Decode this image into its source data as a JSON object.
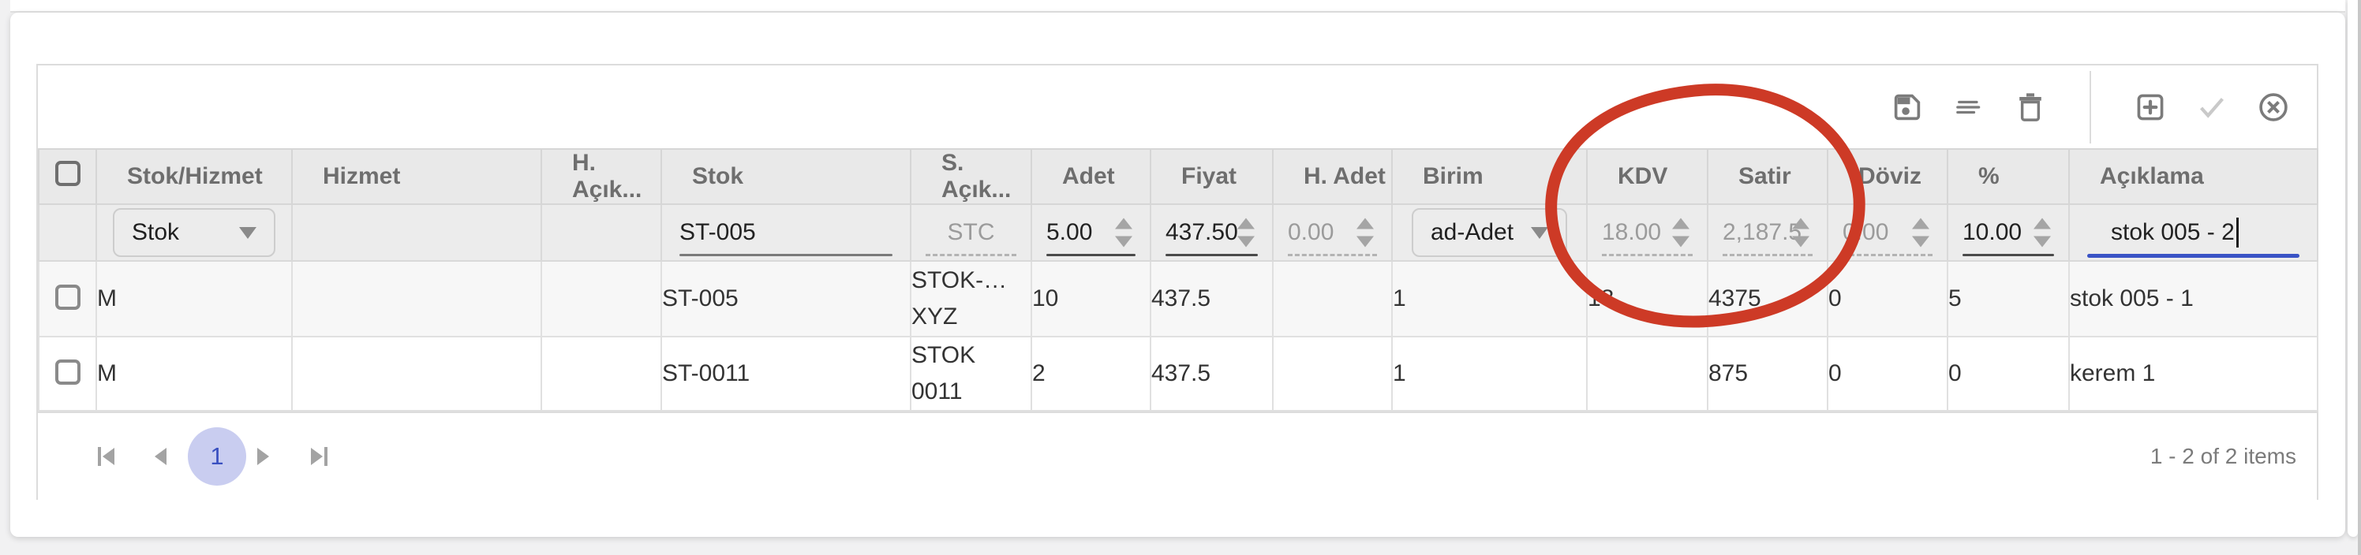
{
  "toolbar": {
    "buttons": [
      {
        "icon": "save-icon",
        "name": "save"
      },
      {
        "icon": "notes-icon",
        "name": "notes"
      },
      {
        "icon": "trash-icon",
        "name": "delete"
      },
      {
        "icon": "add-icon",
        "name": "add"
      },
      {
        "icon": "confirm-icon",
        "name": "confirm"
      },
      {
        "icon": "cancel-icon",
        "name": "cancel"
      }
    ]
  },
  "grid": {
    "columns": [
      {
        "key": "select",
        "label": ""
      },
      {
        "key": "stok_hizmet",
        "label": "Stok/Hizmet"
      },
      {
        "key": "hizmet",
        "label": "Hizmet"
      },
      {
        "key": "h_aciklama",
        "label": "H. Açık..."
      },
      {
        "key": "stok",
        "label": "Stok"
      },
      {
        "key": "s_aciklama",
        "label": "S. Açık..."
      },
      {
        "key": "adet",
        "label": "Adet"
      },
      {
        "key": "fiyat",
        "label": "Fiyat"
      },
      {
        "key": "h_adet",
        "label": "H. Adet"
      },
      {
        "key": "birim",
        "label": "Birim"
      },
      {
        "key": "kdv",
        "label": "KDV"
      },
      {
        "key": "satir",
        "label": "Satir"
      },
      {
        "key": "doviz",
        "label": "Döviz"
      },
      {
        "key": "yuzde",
        "label": "%"
      },
      {
        "key": "aciklama",
        "label": "Açıklama"
      }
    ],
    "edit_row": {
      "stok_hizmet_value": "Stok",
      "stok_value": "ST-005",
      "s_aciklama_placeholder": "STC",
      "adet_value": "5.00",
      "fiyat_value": "437.50",
      "h_adet_value": "0.00",
      "birim_value": "ad-Adet",
      "kdv_value": "18.00",
      "satir_value": "2,187.5",
      "doviz_value": "0.00",
      "yuzde_value": "10.00",
      "aciklama_value": "stok 005 - 2"
    },
    "rows": [
      {
        "stok_hizmet": "M",
        "hizmet": "",
        "h_aciklama": "",
        "stok": "ST-005",
        "s_aciklama": "STOK-…\nXYZ",
        "adet": "10",
        "fiyat": "437.5",
        "h_adet": "",
        "birim": "1",
        "kdv": "18",
        "satir": "4375",
        "doviz": "0",
        "yuzde": "5",
        "aciklama": "stok 005 - 1"
      },
      {
        "stok_hizmet": "M",
        "hizmet": "",
        "h_aciklama": "",
        "stok": "ST-0011",
        "s_aciklama": "STOK\n0011",
        "adet": "2",
        "fiyat": "437.5",
        "h_adet": "",
        "birim": "1",
        "kdv": "",
        "satir": "875",
        "doviz": "0",
        "yuzde": "0",
        "aciklama": "kerem 1"
      }
    ],
    "pager": {
      "current_page": "1",
      "info": "1 - 2 of 2 items"
    }
  },
  "annotation": {
    "shape": "hand-drawn-ellipse",
    "color": "#cd3a26",
    "around_columns": [
      "KDV",
      "Satir"
    ]
  }
}
